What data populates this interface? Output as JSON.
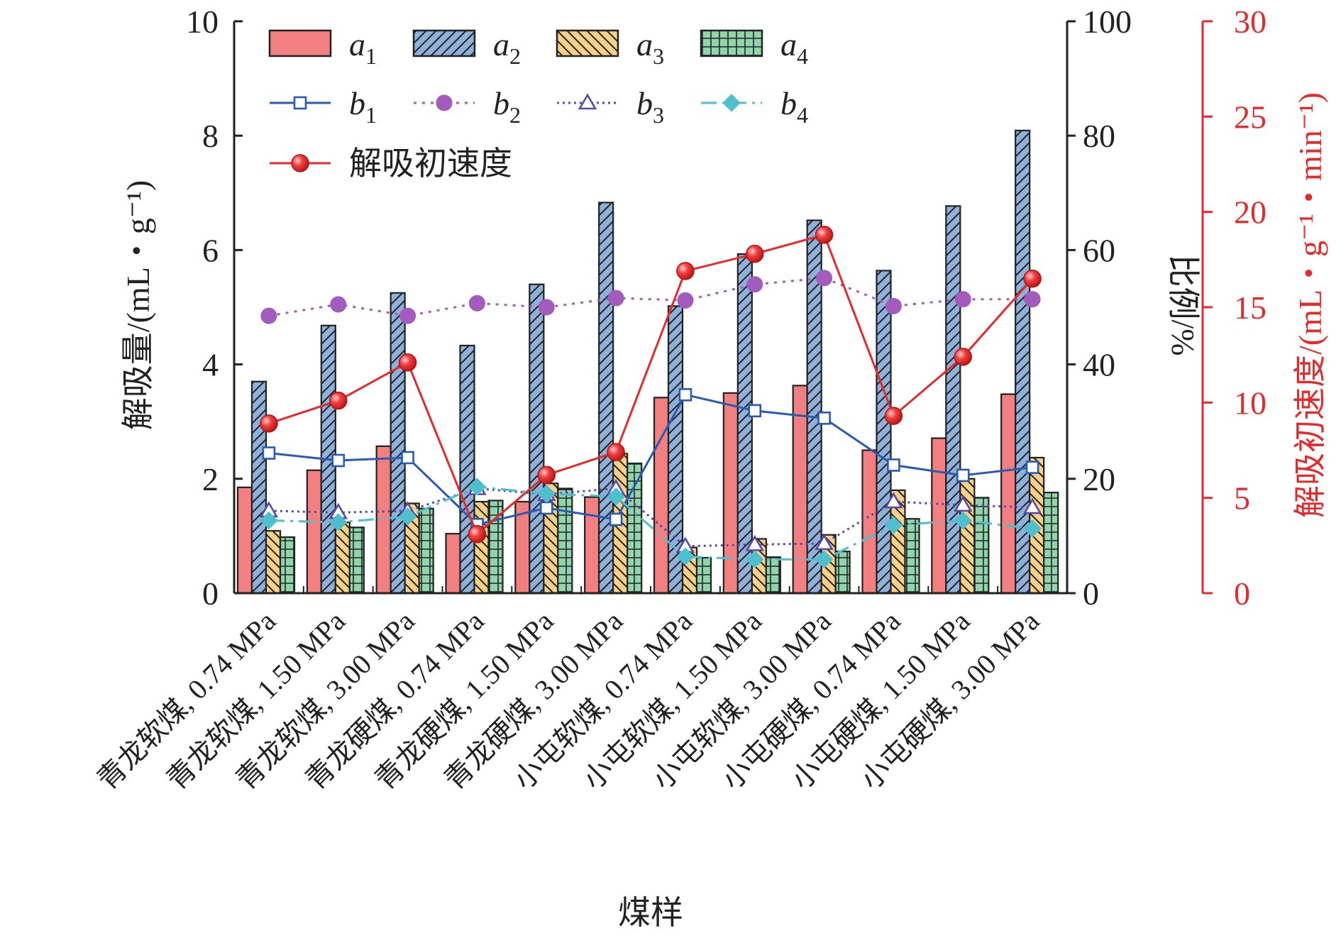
{
  "chart_data": {
    "type": "bar",
    "categories": [
      "青龙软煤, 0.74 MPa",
      "青龙软煤, 1.50 MPa",
      "青龙软煤, 3.00 MPa",
      "青龙硬煤, 0.74 MPa",
      "青龙硬煤, 1.50 MPa",
      "青龙硬煤, 3.00 MPa",
      "小屯软煤, 0.74 MPa",
      "小屯软煤, 1.50 MPa",
      "小屯软煤, 3.00 MPa",
      "小屯硬煤, 0.74 MPa",
      "小屯硬煤, 1.50 MPa",
      "小屯硬煤, 3.00 MPa"
    ],
    "xlabel": "煤样",
    "ylabel_left": "解吸量/(mL・g⁻¹)",
    "ylabel_mid": "比例/%",
    "ylabel_right": "解吸初速度/(mL・g⁻¹・min⁻¹)",
    "ylim_left": [
      0,
      10
    ],
    "ylim_mid": [
      0,
      100
    ],
    "ylim_right": [
      0,
      30
    ],
    "ticks_left": [
      "0",
      "2",
      "4",
      "6",
      "8",
      "10"
    ],
    "ticks_mid": [
      "0",
      "20",
      "40",
      "60",
      "80",
      "100"
    ],
    "ticks_right": [
      "0",
      "5",
      "10",
      "15",
      "20",
      "25",
      "30"
    ],
    "grid": false,
    "legend_position": "top-left",
    "bar_series": [
      {
        "name": "a",
        "sub": "1",
        "color": "#f28080",
        "pattern": "solid",
        "values": [
          1.85,
          2.15,
          2.57,
          1.04,
          1.6,
          1.68,
          3.42,
          3.5,
          3.63,
          2.5,
          2.71,
          3.48
        ]
      },
      {
        "name": "a",
        "sub": "2",
        "color": "#8fb1d9",
        "pattern": "diag-right",
        "values": [
          3.7,
          4.68,
          5.25,
          4.33,
          5.4,
          6.83,
          5.02,
          5.93,
          6.52,
          5.64,
          6.77,
          8.09
        ]
      },
      {
        "name": "a",
        "sub": "3",
        "color": "#f7d08a",
        "pattern": "diag-left",
        "values": [
          1.09,
          1.24,
          1.57,
          1.6,
          1.92,
          2.44,
          0.8,
          0.95,
          1.02,
          1.8,
          2.0,
          2.37
        ]
      },
      {
        "name": "a",
        "sub": "4",
        "color": "#8fd4aa",
        "pattern": "grid",
        "values": [
          0.98,
          1.15,
          1.48,
          1.62,
          1.83,
          2.27,
          0.62,
          0.63,
          0.73,
          1.3,
          1.67,
          1.76
        ]
      }
    ],
    "line_series": [
      {
        "name": "b",
        "sub": "1",
        "color": "#2a5ab3",
        "dash": "",
        "marker": "square",
        "axis": "mid",
        "values": [
          24.5,
          23.2,
          23.7,
          12.0,
          14.9,
          12.9,
          34.7,
          31.9,
          30.6,
          22.4,
          20.6,
          22.0
        ]
      },
      {
        "name": "b",
        "sub": "2",
        "color": "#a35bbd",
        "dash": "4 8",
        "marker": "circle",
        "axis": "mid",
        "values": [
          48.5,
          50.5,
          48.5,
          50.7,
          50.0,
          51.6,
          51.2,
          54.0,
          55.1,
          50.2,
          51.4,
          51.4
        ]
      },
      {
        "name": "b",
        "sub": "3",
        "color": "#5a4aa8",
        "dash": "3 5",
        "marker": "triangle",
        "axis": "mid",
        "values": [
          14.4,
          14.1,
          14.4,
          18.3,
          17.3,
          18.3,
          8.2,
          8.5,
          8.7,
          16.0,
          15.4,
          15.0
        ]
      },
      {
        "name": "b",
        "sub": "4",
        "color": "#4fbfcf",
        "dash": "22 8 4 8",
        "marker": "diamond",
        "axis": "mid",
        "values": [
          12.7,
          12.4,
          13.4,
          18.6,
          17.4,
          16.9,
          6.4,
          5.9,
          5.9,
          11.9,
          12.7,
          11.3
        ]
      },
      {
        "name": "解吸初速度",
        "sub": "",
        "color": "#e32b2b",
        "dash": "",
        "marker": "ball",
        "axis": "right",
        "values": [
          8.9,
          10.1,
          12.1,
          3.1,
          6.2,
          7.4,
          16.9,
          17.8,
          18.8,
          9.3,
          12.4,
          16.5
        ]
      }
    ]
  }
}
